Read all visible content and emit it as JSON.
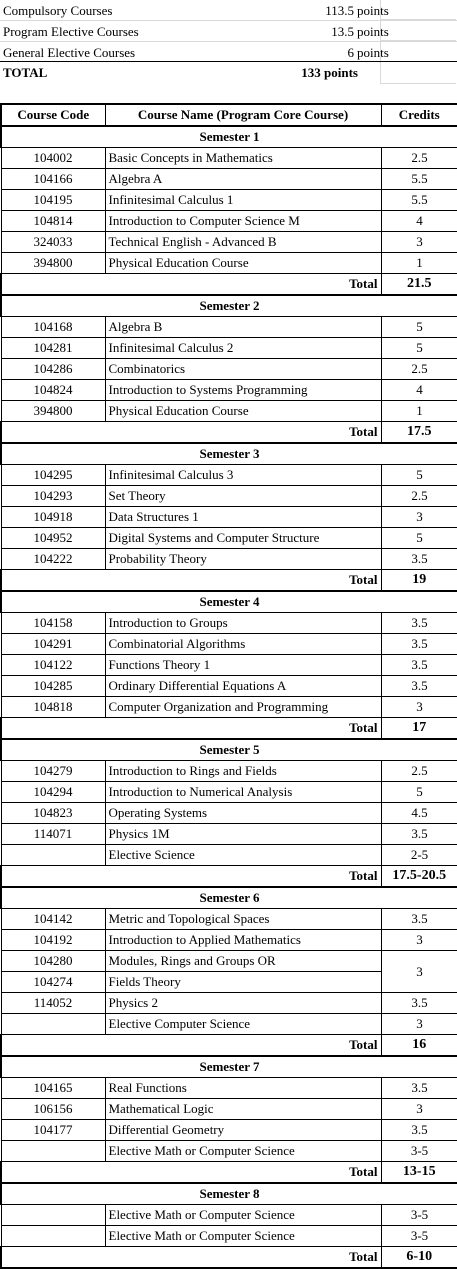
{
  "summary": {
    "rows": [
      {
        "label": "Compulsory Courses",
        "value": "113.5",
        "unit": "points"
      },
      {
        "label": "Program Elective Courses",
        "value": "13.5",
        "unit": "points"
      },
      {
        "label": "General Elective Courses",
        "value": "6",
        "unit": "points"
      }
    ],
    "total": {
      "label": "TOTAL",
      "value": "133 points"
    }
  },
  "table": {
    "headers": {
      "code": "Course Code",
      "name": "Course Name (Program Core Course)",
      "credits": "Credits"
    },
    "total_label": "Total",
    "semesters": [
      {
        "title": "Semester 1",
        "courses": [
          {
            "code": "104002",
            "name": "Basic Concepts in Mathematics",
            "credits": "2.5"
          },
          {
            "code": "104166",
            "name": "Algebra A",
            "credits": "5.5"
          },
          {
            "code": "104195",
            "name": "Infinitesimal Calculus 1",
            "credits": "5.5"
          },
          {
            "code": "104814",
            "name": "Introduction to Computer Science M",
            "credits": "4"
          },
          {
            "code": "324033",
            "name": "Technical English - Advanced B",
            "credits": "3"
          },
          {
            "code": "394800",
            "name": "Physical Education Course",
            "credits": "1"
          }
        ],
        "total": "21.5"
      },
      {
        "title": "Semester 2",
        "courses": [
          {
            "code": "104168",
            "name": "Algebra B",
            "credits": "5"
          },
          {
            "code": "104281",
            "name": "Infinitesimal Calculus 2",
            "credits": "5"
          },
          {
            "code": "104286",
            "name": "Combinatorics",
            "credits": "2.5"
          },
          {
            "code": "104824",
            "name": "Introduction to Systems Programming",
            "credits": "4"
          },
          {
            "code": "394800",
            "name": "Physical Education Course",
            "credits": "1"
          }
        ],
        "total": "17.5"
      },
      {
        "title": "Semester 3",
        "courses": [
          {
            "code": "104295",
            "name": "Infinitesimal Calculus 3",
            "credits": "5"
          },
          {
            "code": "104293",
            "name": "Set Theory",
            "credits": "2.5"
          },
          {
            "code": "104918",
            "name": "Data Structures 1",
            "credits": "3"
          },
          {
            "code": "104952",
            "name": "Digital Systems and Computer Structure",
            "credits": "5"
          },
          {
            "code": "104222",
            "name": "Probability Theory",
            "credits": "3.5"
          }
        ],
        "total": "19"
      },
      {
        "title": "Semester 4",
        "courses": [
          {
            "code": "104158",
            "name": "Introduction to Groups",
            "credits": "3.5"
          },
          {
            "code": "104291",
            "name": "Combinatorial Algorithms",
            "credits": "3.5"
          },
          {
            "code": "104122",
            "name": "Functions Theory 1",
            "credits": "3.5"
          },
          {
            "code": "104285",
            "name": "Ordinary Differential Equations A",
            "credits": "3.5"
          },
          {
            "code": "104818",
            "name": "Computer Organization and Programming",
            "credits": "3"
          }
        ],
        "total": "17"
      },
      {
        "title": "Semester 5",
        "courses": [
          {
            "code": "104279",
            "name": "Introduction to Rings and Fields",
            "credits": "2.5"
          },
          {
            "code": "104294",
            "name": "Introduction to Numerical Analysis",
            "credits": "5"
          },
          {
            "code": "104823",
            "name": "Operating Systems",
            "credits": "4.5"
          },
          {
            "code": "114071",
            "name": "Physics 1M",
            "credits": "3.5"
          },
          {
            "code": "",
            "name": "Elective Science",
            "credits": "2-5"
          }
        ],
        "total": "17.5-20.5"
      },
      {
        "title": "Semester 6",
        "courses": [
          {
            "code": "104142",
            "name": "Metric and Topological Spaces",
            "credits": "3.5"
          },
          {
            "code": "104192",
            "name": "Introduction to Applied Mathematics",
            "credits": "3"
          },
          {
            "code": "104280",
            "name": "Modules, Rings and Groups OR",
            "credits": "3",
            "rowspan": 2
          },
          {
            "code": "104274",
            "name": "Fields Theory",
            "credits": null
          },
          {
            "code": "114052",
            "name": "Physics 2",
            "credits": "3.5"
          },
          {
            "code": "",
            "name": "Elective Computer Science",
            "credits": "3"
          }
        ],
        "total": "16"
      },
      {
        "title": "Semester 7",
        "courses": [
          {
            "code": "104165",
            "name": "Real Functions",
            "credits": "3.5"
          },
          {
            "code": "106156",
            "name": "Mathematical Logic",
            "credits": "3"
          },
          {
            "code": "104177",
            "name": "Differential Geometry",
            "credits": "3.5"
          },
          {
            "code": "",
            "name": "Elective Math or Computer Science",
            "credits": "3-5"
          }
        ],
        "total": "13-15"
      },
      {
        "title": "Semester 8",
        "courses": [
          {
            "code": "",
            "name": "Elective Math or Computer Science",
            "credits": "3-5"
          },
          {
            "code": "",
            "name": "Elective Math or Computer Science",
            "credits": "3-5"
          }
        ],
        "total": "6-10"
      }
    ]
  }
}
